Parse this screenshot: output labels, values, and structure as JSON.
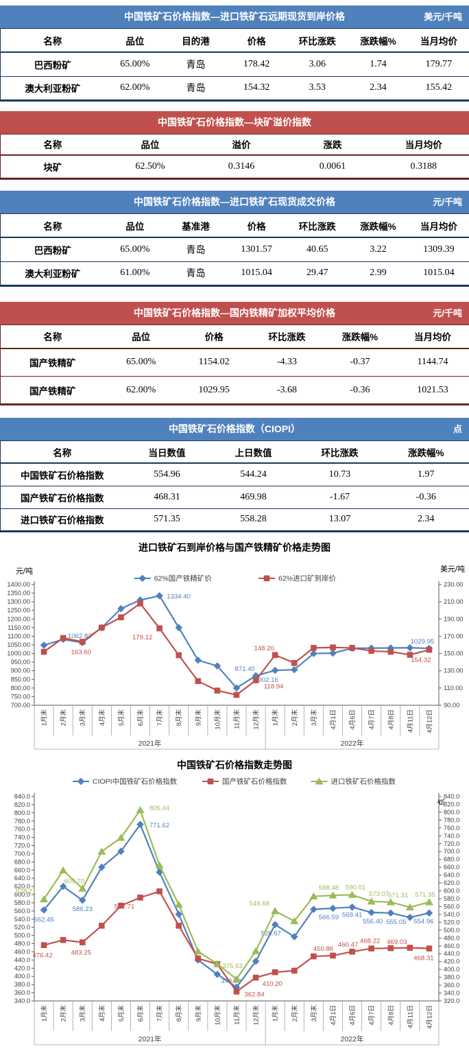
{
  "report": {
    "tables": [
      {
        "theme": "blue",
        "title": "中国铁矿石价格指数—进口铁矿石远期现货到岸价格",
        "unit": "美元/千吨",
        "columns": [
          "名称",
          "品位",
          "目的港",
          "价格",
          "环比涨跌",
          "涨跌幅%",
          "当月均价"
        ],
        "rows": [
          [
            "巴西粉矿",
            "65.00%",
            "青岛",
            "178.42",
            "3.06",
            "1.74",
            "179.77"
          ],
          [
            "澳大利亚粉矿",
            "62.00%",
            "青岛",
            "154.32",
            "3.53",
            "2.34",
            "155.42"
          ]
        ]
      },
      {
        "theme": "red",
        "title": "中国铁矿石价格指数—块矿溢价指数",
        "unit": "",
        "columns": [
          "名称",
          "品位",
          "溢价",
          "涨跌",
          "当月均价"
        ],
        "rows": [
          [
            "块矿",
            "62.50%",
            "0.3146",
            "0.0061",
            "0.3188"
          ]
        ]
      },
      {
        "theme": "blue",
        "title": "中国铁矿石价格指数—进口铁矿石现货成交价格",
        "unit": "元/千吨",
        "columns": [
          "名称",
          "品位",
          "基准港",
          "价格",
          "环比涨跌",
          "涨跌幅%",
          "当月均价"
        ],
        "rows": [
          [
            "巴西粉矿",
            "65.00%",
            "青岛",
            "1301.57",
            "40.65",
            "3.22",
            "1309.39"
          ],
          [
            "澳大利亚粉矿",
            "61.00%",
            "青岛",
            "1015.04",
            "29.47",
            "2.99",
            "1015.04"
          ]
        ]
      },
      {
        "theme": "red",
        "title": "中国铁矿石价格指数—国内铁精矿加权平均价格",
        "unit": "元/千吨",
        "columns": [
          "名称",
          "品位",
          "价格",
          "环比涨跌",
          "涨跌幅%",
          "当月均价"
        ],
        "rows": [
          [
            "国产铁精矿",
            "65.00%",
            "1154.02",
            "-4.33",
            "-0.37",
            "1144.74"
          ],
          [
            "国产铁精矿",
            "62.00%",
            "1029.95",
            "-3.68",
            "-0.36",
            "1021.53"
          ]
        ]
      },
      {
        "theme": "blue",
        "title": "中国铁矿石价格指数（CIOPI）",
        "unit": "点",
        "columns": [
          "名称",
          "当日数值",
          "上日数值",
          "环比涨跌",
          "涨跌幅%"
        ],
        "rows": [
          [
            "中国铁矿石价格指数",
            "554.96",
            "544.24",
            "10.73",
            "1.97"
          ],
          [
            "国产铁矿石价格指数",
            "468.31",
            "469.98",
            "-1.67",
            "-0.36"
          ],
          [
            "进口铁矿石价格指数",
            "571.35",
            "558.28",
            "13.07",
            "2.34"
          ]
        ]
      }
    ]
  },
  "chart_data": [
    {
      "type": "line",
      "title": "进口铁矿石到岸价格与国产铁精矿价格走势图",
      "grid": false,
      "legend_position": "top",
      "left_axis": {
        "title": "元/吨",
        "min": 700,
        "max": 1400,
        "step": 50,
        "decimals": 2
      },
      "right_axis": {
        "title": "美元/吨",
        "min": 90,
        "max": 230,
        "step": 20,
        "decimals": 2
      },
      "categories": [
        "1月末",
        "2月末",
        "3月末",
        "4月末",
        "5月末",
        "6月末",
        "7月末",
        "8月末",
        "9月末",
        "10月末",
        "11月末",
        "12月末",
        "1月末",
        "2月末",
        "3月末",
        "4月1日",
        "4月6日",
        "4月7日",
        "4月8日",
        "4月11日",
        "4月12日"
      ],
      "year_groups": [
        {
          "label": "2021年",
          "count": 12
        },
        {
          "label": "2022年",
          "count": 9
        }
      ],
      "series": [
        {
          "name": "62%国产铁精矿价",
          "color": "#4f81bd",
          "marker": "diamond",
          "axis": "left",
          "values": [
            1048,
            1082,
            1062.82,
            1150,
            1260,
            1310,
            1334.4,
            1150,
            961,
            928,
            800,
            871.4,
            902.16,
            906,
            1000,
            1002,
            1030,
            1031,
            1032,
            1033,
            1029.95
          ],
          "point_labels": [
            {
              "i": 2,
              "t": "1062.82",
              "dx": -4,
              "dy": -7
            },
            {
              "i": 6,
              "t": "1334.40",
              "dx": 28,
              "dy": 4
            },
            {
              "i": 11,
              "t": "871.40",
              "dx": -16,
              "dy": -7
            },
            {
              "i": 12,
              "t": "902.16",
              "dx": -10,
              "dy": 17
            },
            {
              "i": 20,
              "t": "1029.95",
              "dx": -10,
              "dy": -7
            }
          ]
        },
        {
          "name": "62%进口矿到岸价",
          "color": "#c0504d",
          "marker": "square",
          "axis": "right",
          "values": [
            152,
            168,
            163.6,
            180,
            192,
            208,
            179.12,
            148,
            118,
            107,
            102,
            118.94,
            148.2,
            139,
            156.5,
            157,
            156.5,
            153,
            152,
            148.5,
            154.32
          ],
          "point_labels": [
            {
              "i": 2,
              "t": "163.60",
              "dx": -2,
              "dy": 18
            },
            {
              "i": 6,
              "t": "179.12",
              "dx": -25,
              "dy": 16
            },
            {
              "i": 11,
              "t": "118.94",
              "dx": 26,
              "dy": 12
            },
            {
              "i": 12,
              "t": "148.20",
              "dx": -16,
              "dy": -7
            },
            {
              "i": 20,
              "t": "154.32",
              "dx": -12,
              "dy": 18
            }
          ]
        }
      ]
    },
    {
      "type": "line",
      "title": "中国铁矿石价格指数走势图",
      "grid": false,
      "legend_position": "top",
      "point_unit": "点",
      "left_axis": {
        "title": "",
        "min": 340,
        "max": 840,
        "step": 20,
        "decimals": 1
      },
      "right_axis": {
        "title": "",
        "min": 320,
        "max": 840,
        "step": 20,
        "decimals": 1
      },
      "categories": [
        "1月末",
        "2月末",
        "3月末",
        "4月末",
        "5月末",
        "6月末",
        "7月末",
        "8月末",
        "9月末",
        "10月末",
        "11月末",
        "12月末",
        "1月末",
        "2月末",
        "3月末",
        "4月1日",
        "4月6日",
        "4月7日",
        "4月8日",
        "4月11日",
        "4月12日"
      ],
      "year_groups": [
        {
          "label": "2021年",
          "count": 12
        },
        {
          "label": "2022年",
          "count": 9
        }
      ],
      "series": [
        {
          "name": "CIOPI中国铁矿石价格指数",
          "color": "#4f81bd",
          "marker": "diamond",
          "axis": "left",
          "values": [
            562.45,
            620,
            586.23,
            667,
            706,
            771.62,
            655,
            552,
            440,
            405,
            373.59,
            437,
            526.67,
            497,
            564,
            566.59,
            569.41,
            556.4,
            555.05,
            544.24,
            554.96
          ],
          "point_labels": [
            {
              "i": 0,
              "t": "562.45",
              "dx": 0,
              "dy": 17
            },
            {
              "i": 2,
              "t": "586.23",
              "dx": 0,
              "dy": 16
            },
            {
              "i": 5,
              "t": "771.62",
              "dx": 28,
              "dy": 4
            },
            {
              "i": 10,
              "t": "373.59",
              "dx": -8,
              "dy": -6
            },
            {
              "i": 12,
              "t": "526.67",
              "dx": -6,
              "dy": 16
            },
            {
              "i": 15,
              "t": "566.59",
              "dx": -6,
              "dy": 16
            },
            {
              "i": 16,
              "t": "569.41",
              "dx": 0,
              "dy": 14
            },
            {
              "i": 17,
              "t": "556.40",
              "dx": 2,
              "dy": 16
            },
            {
              "i": 18,
              "t": "555.05",
              "dx": 8,
              "dy": 16
            },
            {
              "i": 20,
              "t": "554.96",
              "dx": -8,
              "dy": 15
            }
          ]
        },
        {
          "name": "国产铁矿石价格指数",
          "color": "#c0504d",
          "marker": "square",
          "axis": "left",
          "values": [
            476.42,
            489,
            483.25,
            524,
            573,
            592.71,
            608,
            524,
            444,
            430,
            362.84,
            397,
            410.2,
            414,
            449,
            450.86,
            460.47,
            468.22,
            469.03,
            469.98,
            468.31
          ],
          "point_labels": [
            {
              "i": 0,
              "t": "476.42",
              "dx": -2,
              "dy": 18
            },
            {
              "i": 2,
              "t": "483.25",
              "dx": -2,
              "dy": 18
            },
            {
              "i": 5,
              "t": "592.71",
              "dx": -23,
              "dy": 16
            },
            {
              "i": 10,
              "t": "362.84",
              "dx": 26,
              "dy": 7
            },
            {
              "i": 12,
              "t": "410.20",
              "dx": -4,
              "dy": 20
            },
            {
              "i": 15,
              "t": "450.86",
              "dx": -14,
              "dy": -7
            },
            {
              "i": 16,
              "t": "460.47",
              "dx": -6,
              "dy": -7
            },
            {
              "i": 17,
              "t": "468.22",
              "dx": -2,
              "dy": -8
            },
            {
              "i": 18,
              "t": "469.03",
              "dx": 9,
              "dy": -6
            },
            {
              "i": 20,
              "t": "468.31",
              "dx": -8,
              "dy": 17
            }
          ]
        },
        {
          "name": "进口铁矿石价格指数",
          "color": "#9bbb59",
          "marker": "triangle",
          "axis": "right",
          "values": [
            578.71,
            652,
            605.7,
            700,
            735,
            805.44,
            665,
            565,
            446,
            414,
            375.63,
            447,
            548.68,
            523,
            586,
            588.48,
            590.01,
            573.07,
            571.31,
            558.28,
            571.35
          ],
          "point_labels": [
            {
              "i": 0,
              "t": "578.71",
              "dx": -26,
              "dy": -8
            },
            {
              "i": 2,
              "t": "605.70",
              "dx": -12,
              "dy": -8
            },
            {
              "i": 5,
              "t": "805.44",
              "dx": 28,
              "dy": 0
            },
            {
              "i": 10,
              "t": "375.63",
              "dx": -6,
              "dy": -16
            },
            {
              "i": 12,
              "t": "548.68",
              "dx": -23,
              "dy": -8
            },
            {
              "i": 15,
              "t": "588.48",
              "dx": -6,
              "dy": -8
            },
            {
              "i": 16,
              "t": "590.01",
              "dx": 5,
              "dy": -8
            },
            {
              "i": 17,
              "t": "573.07",
              "dx": 11,
              "dy": -8
            },
            {
              "i": 18,
              "t": "571.31",
              "dx": 11,
              "dy": -7
            },
            {
              "i": 20,
              "t": "571.35",
              "dx": -6,
              "dy": -8
            }
          ]
        }
      ]
    }
  ]
}
